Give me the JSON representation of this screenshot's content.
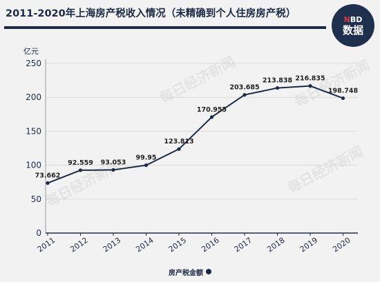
{
  "title": "2011-2020年上海房产税收入情况（未精确到个人住房房产税）",
  "badge": {
    "line1_prefix": "",
    "line1_n": "N",
    "line1_rest": "BD",
    "line2": "数据"
  },
  "watermark": "每日经济新闻",
  "legend_label": "房产税金额",
  "colors": {
    "line": "#1c2a44",
    "grid": "#d9d9d9",
    "text": "#1c2a44"
  },
  "chart_data": {
    "type": "line",
    "title": "2011-2020年上海房产税收入情况（未精确到个人住房房产税）",
    "ylabel": "亿元",
    "xlabel": "",
    "x": [
      "2011",
      "2012",
      "2013",
      "2014",
      "2015",
      "2016",
      "2017",
      "2018",
      "2019",
      "2020"
    ],
    "series": [
      {
        "name": "房产税金额",
        "values": [
          73.662,
          92.559,
          93.053,
          99.95,
          123.813,
          170.955,
          203.685,
          213.838,
          216.835,
          198.748
        ],
        "labels": [
          "73.662",
          "92.559",
          "93.053",
          "99.95",
          "123.813",
          "170.955",
          "203.685",
          "213.838",
          "216.835",
          "198.748"
        ]
      }
    ],
    "ylim": [
      0,
      250
    ],
    "yticks": [
      "0",
      "50",
      "100",
      "150",
      "200",
      "250"
    ],
    "grid": true,
    "legend_position": "bottom"
  }
}
